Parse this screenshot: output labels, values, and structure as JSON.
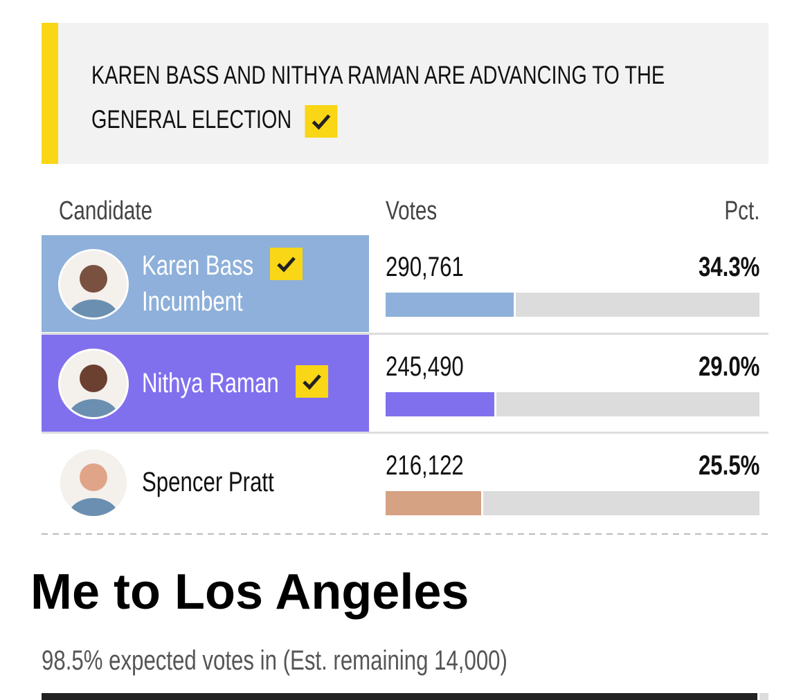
{
  "banner": {
    "text": "KAREN BASS AND NITHYA RAMAN ARE ADVANCING TO THE GENERAL ELECTION"
  },
  "table": {
    "headers": [
      "Candidate",
      "Votes",
      "Pct."
    ],
    "rows": [
      {
        "name": "Karen Bass",
        "note": "Incumbent",
        "advancing": true,
        "color": "#8eb0da",
        "photo_color": "#7a5040",
        "votes": "290,761",
        "pct": {
          "value": 34.3,
          "label": "34.3%"
        }
      },
      {
        "name": "Nithya Raman",
        "advancing": true,
        "color": "#8070ee",
        "photo_color": "#6b4030",
        "votes": "245,490",
        "pct": {
          "value": 29.0,
          "label": "29.0%"
        }
      },
      {
        "name": "Spencer Pratt",
        "advancing": false,
        "color": "#d6a284",
        "photo_color": "#e0a488",
        "votes": "216,122",
        "pct": {
          "value": 25.5,
          "label": "25.5%"
        }
      }
    ]
  },
  "footer": {
    "title": "Me to Los Angeles",
    "reporting": {
      "value": 98.5,
      "label": "98.5% expected votes in (Est. remaining 14,000)"
    }
  }
}
